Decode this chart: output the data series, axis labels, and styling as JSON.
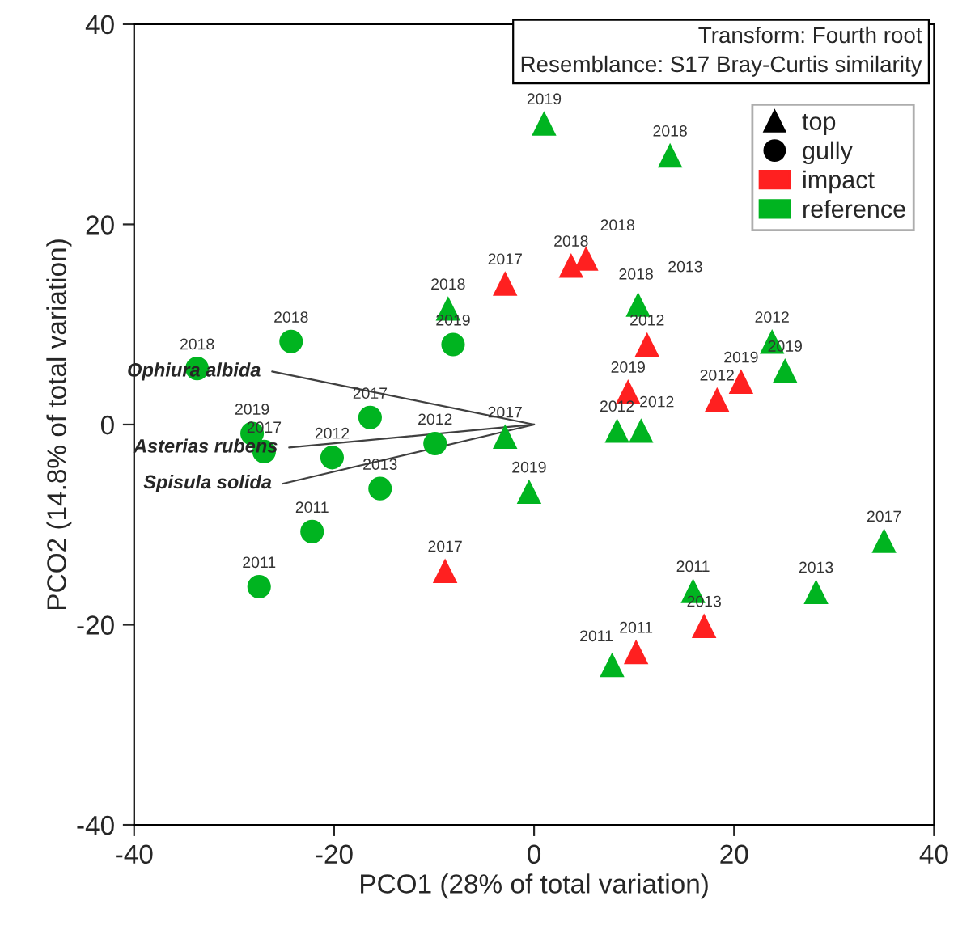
{
  "chart_data": {
    "type": "scatter",
    "xlabel": "PCO1 (28% of total variation)",
    "ylabel": "PCO2 (14.8% of total variation)",
    "annotations": [
      "Transform: Fourth root",
      "Resemblance: S17 Bray-Curtis similarity",
      "top",
      "gully",
      {
        "text": "2017",
        "x": -2.9,
        "y": 14.1
      },
      {
        "text": "2018",
        "x": 3.7,
        "y": 15.9
      },
      {
        "text": "2018",
        "x": 5.2,
        "y": 16.6
      },
      {
        "text": "2012",
        "x": 11.3,
        "y": 8.0
      },
      {
        "text": "2019",
        "x": 20.7,
        "y": 4.3
      },
      {
        "text": "2012",
        "x": 18.3,
        "y": 2.5
      },
      {
        "text": "2019",
        "x": 9.4,
        "y": 3.3
      },
      {
        "text": "2017",
        "x": -8.9,
        "y": -14.6
      },
      {
        "text": "2013",
        "x": 17.0,
        "y": -20.1
      },
      {
        "text": "2011",
        "x": 10.2,
        "y": -22.7
      },
      {
        "text": "2019",
        "x": 1.0,
        "y": 30.1
      },
      {
        "text": "2018",
        "x": 13.6,
        "y": 26.9
      },
      {
        "text": "2018",
        "x": -8.6,
        "y": 11.6
      },
      {
        "text": "2018",
        "x": 10.2,
        "y": 12.6
      },
      {
        "text": "2013",
        "x": 10.4,
        "y": 12.0
      },
      {
        "text": "2017",
        "x": -2.9,
        "y": -1.2
      },
      {
        "text": "2019",
        "x": -0.5,
        "y": -6.7
      },
      {
        "text": "2012",
        "x": 23.8,
        "y": 8.3
      },
      {
        "text": "2019",
        "x": 25.1,
        "y": 5.4
      },
      {
        "text": "2012",
        "x": 8.3,
        "y": -0.6
      },
      {
        "text": "2012",
        "x": 10.7,
        "y": -0.6
      },
      {
        "text": "2017",
        "x": 35.0,
        "y": -11.6
      },
      {
        "text": "2011",
        "x": 15.9,
        "y": -16.6
      },
      {
        "text": "2013",
        "x": 28.2,
        "y": -16.7
      },
      {
        "text": "2011",
        "x": 7.8,
        "y": -24.0
      },
      {
        "text": "2019",
        "x": -8.1,
        "y": 8.0
      },
      {
        "text": "2018",
        "x": -24.3,
        "y": 8.3
      },
      {
        "text": "2018",
        "x": -33.7,
        "y": 5.6
      },
      {
        "text": "2017",
        "x": -16.4,
        "y": 0.7
      },
      {
        "text": "2019",
        "x": -28.2,
        "y": -0.9
      },
      {
        "text": "2017",
        "x": -27.0,
        "y": -2.7
      },
      {
        "text": "2012",
        "x": -20.2,
        "y": -3.3
      },
      {
        "text": "2012",
        "x": -9.9,
        "y": -1.9
      },
      {
        "text": "2013",
        "x": -15.4,
        "y": -6.4
      },
      {
        "text": "2011",
        "x": -22.2,
        "y": -10.7
      },
      {
        "text": "2011",
        "x": -27.5,
        "y": -16.2
      }
    ],
    "xlim": [
      -40,
      40
    ],
    "xticks": [
      -40,
      -20,
      0,
      20,
      40
    ],
    "ylim": [
      -40,
      40
    ],
    "yticks": [
      -40,
      -20,
      0,
      20,
      40
    ],
    "grid": false,
    "legend": "top right",
    "series": [
      {
        "name": "impact",
        "marker": "triangle",
        "color": "#ff2020",
        "x": [
          -2.9,
          3.7,
          5.2,
          10.9,
          11.3,
          20.7,
          18.3,
          9.4,
          -8.9,
          17.0,
          10.2
        ],
        "values": [
          14.1,
          15.9,
          16.6,
          null,
          8.0,
          4.3,
          2.5,
          3.3,
          -14.6,
          -20.1,
          -22.7
        ]
      },
      {
        "name": "reference",
        "marker": "triangle",
        "color": "#00b420",
        "x": [
          1.0,
          13.6,
          -8.6,
          10.2,
          10.4,
          -2.9,
          -0.5,
          23.8,
          25.1,
          8.3,
          10.7,
          35.0,
          15.9,
          28.2,
          7.8
        ],
        "values": [
          30.1,
          26.9,
          11.6,
          null,
          12.0,
          -1.2,
          -6.7,
          8.3,
          5.4,
          -0.6,
          -0.6,
          -11.6,
          -16.6,
          -16.7,
          -24.0
        ]
      },
      {
        "marker": "circle",
        "color": "#00b420",
        "x": [
          -8.1,
          -24.3,
          -33.7,
          -16.4,
          -28.2,
          -27.0,
          -20.2,
          -9.9,
          -15.4,
          -22.2,
          -27.5
        ],
        "values": [
          8.0,
          8.3,
          5.6,
          0.7,
          -0.9,
          -2.7,
          -3.3,
          -1.9,
          -6.4,
          -10.7,
          -16.2
        ]
      },
      {
        "name": "Ophiura albida",
        "type": "line",
        "marker": "none",
        "color": "#404040",
        "x": [
          0,
          -26.2
        ],
        "values": [
          0,
          5.3
        ]
      },
      {
        "name": "Asterias rubens",
        "type": "line",
        "marker": "none",
        "color": "#404040",
        "x": [
          0,
          -24.5
        ],
        "values": [
          0,
          -2.3
        ]
      },
      {
        "name": "Spisula solida",
        "type": "line",
        "marker": "none",
        "color": "#404040",
        "x": [
          0,
          -25.1
        ],
        "values": [
          0,
          -5.9
        ]
      }
    ]
  }
}
